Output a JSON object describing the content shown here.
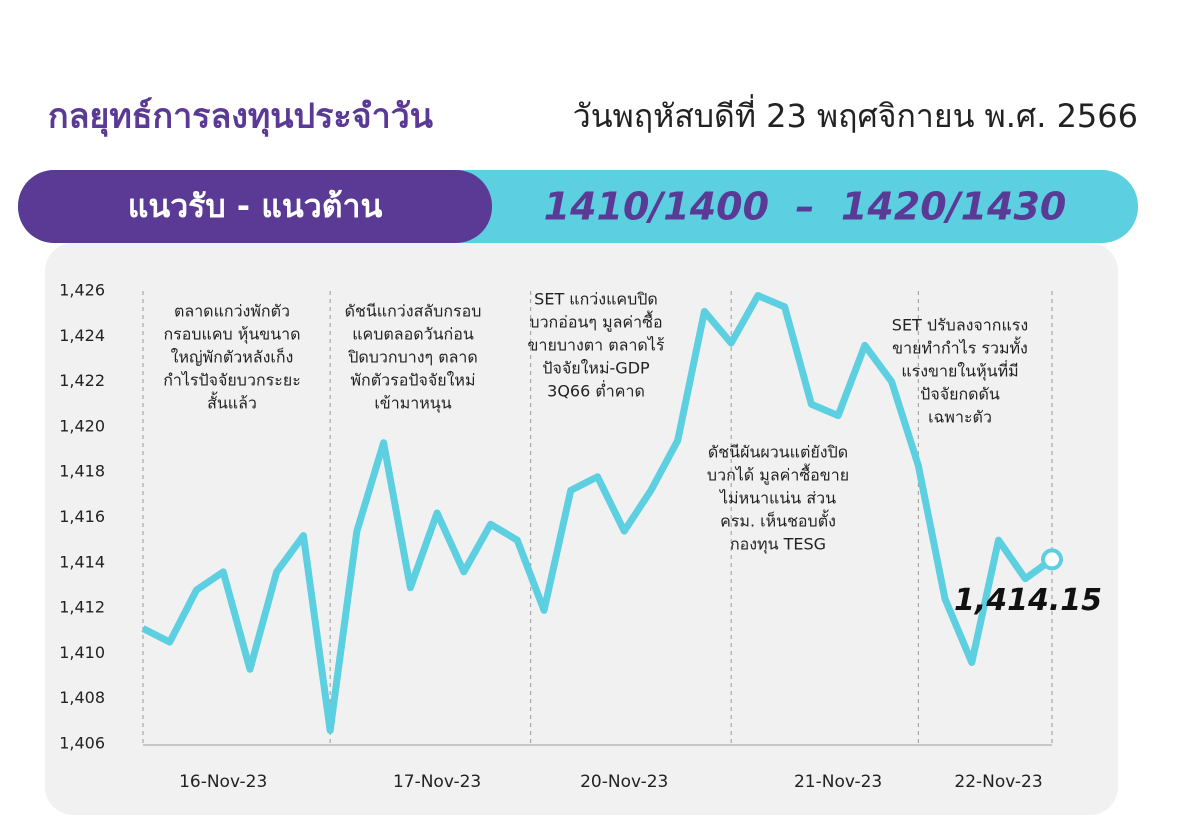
{
  "header": {
    "title": "กลยุทธ์การลงทุนประจำวัน",
    "date": "วันพฤหัสบดีที่ 23 พฤศจิกายน พ.ศ. 2566"
  },
  "banner": {
    "label": "แนวรับ - แนวต้าน",
    "levels": "1410/1400  –  1420/1430"
  },
  "chart_data": {
    "type": "line",
    "categories": [
      null,
      null,
      null,
      "16-Nov-23",
      null,
      null,
      null,
      null,
      null,
      null,
      null,
      "17-Nov-23",
      null,
      null,
      null,
      null,
      null,
      null,
      "20-Nov-23",
      null,
      null,
      null,
      null,
      null,
      null,
      null,
      "21-Nov-23",
      null,
      null,
      null,
      null,
      null,
      "22-Nov-23",
      null,
      null
    ],
    "series": [
      {
        "name": "SET",
        "color": "#5ccfe0",
        "values": [
          1411.1,
          1410.5,
          1412.8,
          1413.6,
          1409.3,
          1413.6,
          1415.2,
          1406.6,
          1415.4,
          1419.3,
          1412.9,
          1416.2,
          1413.6,
          1415.7,
          1415.0,
          1411.9,
          1417.2,
          1417.8,
          1415.4,
          1417.2,
          1419.4,
          1425.1,
          1423.7,
          1425.8,
          1425.3,
          1421.0,
          1420.5,
          1423.6,
          1422.0,
          1418.3,
          1412.4,
          1409.6,
          1415.0,
          1413.3,
          1414.15
        ],
        "value_labels": [
          null,
          null,
          null,
          null,
          null,
          null,
          null,
          null,
          null,
          null,
          null,
          null,
          null,
          null,
          null,
          null,
          null,
          null,
          null,
          null,
          null,
          null,
          null,
          null,
          null,
          null,
          null,
          null,
          null,
          null,
          null,
          null,
          null,
          null,
          "1,414.15"
        ]
      }
    ],
    "ylim": [
      1406,
      1426
    ],
    "yticks": [
      {
        "value": 1406,
        "label": "1,406"
      },
      {
        "value": 1408,
        "label": "1,408"
      },
      {
        "value": 1410,
        "label": "1,410"
      },
      {
        "value": 1412,
        "label": "1,412"
      },
      {
        "value": 1414,
        "label": "1,414"
      },
      {
        "value": 1416,
        "label": "1,416"
      },
      {
        "value": 1418,
        "label": "1,418"
      },
      {
        "value": 1420,
        "label": "1,420"
      },
      {
        "value": 1422,
        "label": "1,422"
      },
      {
        "value": 1424,
        "label": "1,424"
      },
      {
        "value": 1426,
        "label": "1,426"
      }
    ],
    "annotations": [
      [
        "ตลาดแกว่งพักตัว",
        "กรอบแคบ หุ้นขนาด",
        "ใหญ่พักตัวหลังเก็ง",
        "กำไรปัจจัยบวกระยะ",
        "สั้นแล้ว"
      ],
      [
        "ดัชนีแกว่งสลับกรอบ",
        "แคบตลอดวันก่อน",
        "ปิดบวกบางๆ ตลาด",
        "พักตัวรอปัจจัยใหม่",
        "เข้ามาหนุน"
      ],
      [
        "SET แกว่งแคบปิด",
        "บวกอ่อนๆ มูลค่าซื้อ",
        "ขายบางตา ตลาดไร้",
        "ปัจจัยใหม่-GDP",
        "3Q66 ต่ำคาด"
      ],
      [
        "ดัชนีผันผวนแต่ยังปิด",
        "บวกได้ มูลค่าซื้อขาย",
        "ไม่หนาแน่น ส่วน",
        "ครม. เห็นชอบตั้ง",
        "กองทุน TESG"
      ],
      [
        "SET ปรับลงจากแรง",
        "ขายทำกำไร รวมทั้ง",
        "แรงขายในหุ้นที่มี",
        "ปัจจัยกดดัน",
        "เฉพาะตัว"
      ]
    ]
  }
}
